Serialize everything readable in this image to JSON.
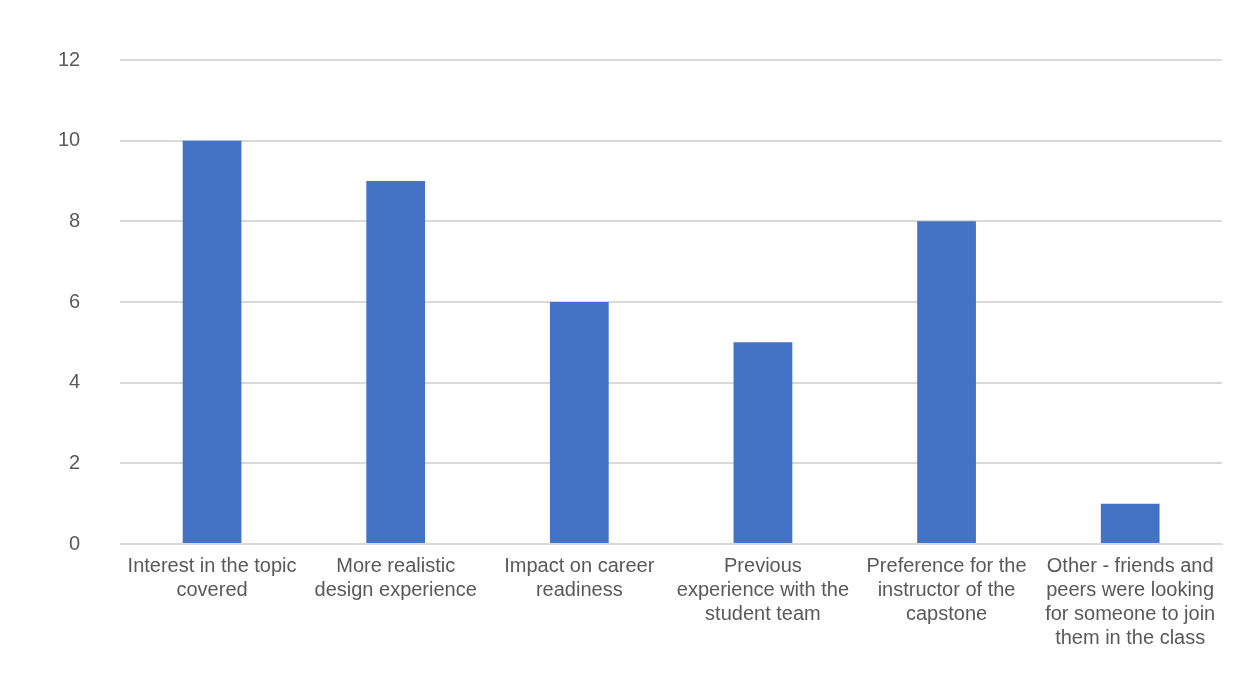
{
  "chart_data": {
    "type": "bar",
    "categories": [
      "Interest in the topic covered",
      "More realistic design experience",
      "Impact on career readiness",
      "Previous experience with the student team",
      "Preference for the instructor of the capstone",
      "Other - friends and peers were looking for someone to join them in the class"
    ],
    "values": [
      10,
      9,
      6,
      5,
      8,
      1
    ],
    "color": "#4472c4",
    "ylim": [
      0,
      12
    ],
    "yticks": [
      0,
      2,
      4,
      6,
      8,
      10,
      12
    ],
    "grid": "y",
    "legend": false
  }
}
